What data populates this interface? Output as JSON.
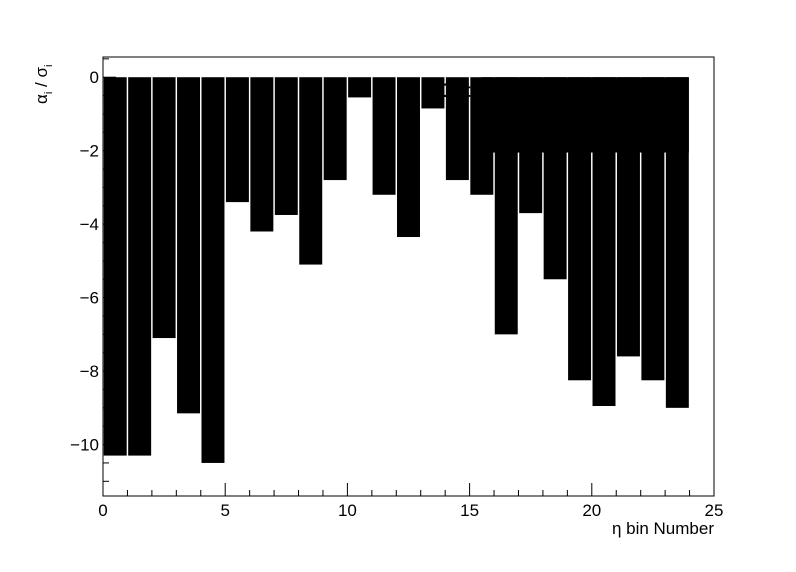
{
  "chart_data": {
    "type": "bar",
    "title": "",
    "annotations": [
      "Data JPsi 50000, unstained",
      "Nb bins: 24"
    ],
    "xlabel": "η bin Number",
    "ylabel_main": "α",
    "ylabel_main_sub": "i",
    "ylabel_sep": " / ",
    "ylabel_den": "σ",
    "ylabel_den_sub": "i",
    "xlim": [
      0,
      25
    ],
    "ylim": [
      -11.4,
      0.55
    ],
    "xticks": [
      0,
      5,
      10,
      15,
      20,
      25
    ],
    "xtick_labels": [
      "0",
      "5",
      "10",
      "15",
      "20",
      "25"
    ],
    "yticks": [
      0,
      -2,
      -4,
      -6,
      -8,
      -10
    ],
    "ytick_labels": [
      "0",
      "−2",
      "−4",
      "−6",
      "−8",
      "−10"
    ],
    "bar_color": "#000000",
    "grid": false,
    "bins": [
      {
        "x": 0.5,
        "value": -10.3
      },
      {
        "x": 1.5,
        "value": -10.3
      },
      {
        "x": 2.5,
        "value": -7.1
      },
      {
        "x": 3.5,
        "value": -9.15
      },
      {
        "x": 4.5,
        "value": -10.5
      },
      {
        "x": 5.5,
        "value": -3.4
      },
      {
        "x": 6.5,
        "value": -4.2
      },
      {
        "x": 7.5,
        "value": -3.75
      },
      {
        "x": 8.5,
        "value": -5.1
      },
      {
        "x": 9.5,
        "value": -2.8
      },
      {
        "x": 10.5,
        "value": -0.55
      },
      {
        "x": 11.5,
        "value": -3.2
      },
      {
        "x": 12.5,
        "value": -4.35
      },
      {
        "x": 13.5,
        "value": -0.85
      },
      {
        "x": 14.5,
        "value": -2.8
      },
      {
        "x": 15.5,
        "value": -3.2
      },
      {
        "x": 16.5,
        "value": -7.0
      },
      {
        "x": 17.5,
        "value": -3.7
      },
      {
        "x": 18.5,
        "value": -5.5
      },
      {
        "x": 19.5,
        "value": -8.25
      },
      {
        "x": 20.5,
        "value": -8.95
      },
      {
        "x": 21.5,
        "value": -7.6
      },
      {
        "x": 22.5,
        "value": -8.25
      },
      {
        "x": 23.5,
        "value": -9.0
      }
    ],
    "plateau": {
      "x_start": 15.5,
      "x_end": 23.5,
      "value": -2.05
    }
  }
}
